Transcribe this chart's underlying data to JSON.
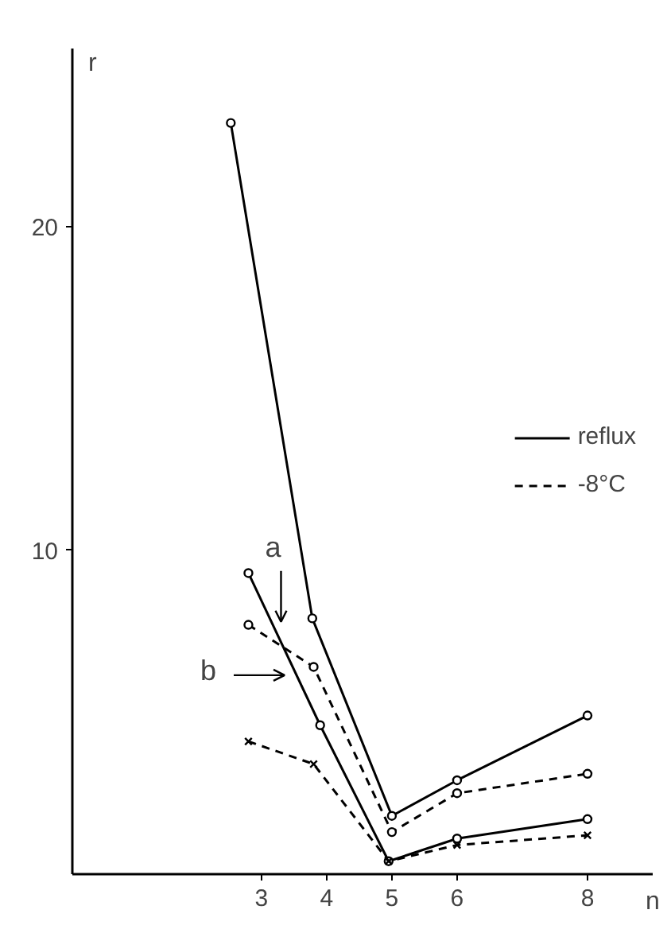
{
  "chart_data": {
    "type": "line",
    "xlabel": "n",
    "ylabel": "r",
    "xlim": [
      0.1,
      9
    ],
    "ylim": [
      0,
      25.5
    ],
    "xticks": [
      3,
      4,
      5,
      6,
      8
    ],
    "yticks": [
      10,
      20
    ],
    "grid": false,
    "legend": "right",
    "marker": "circle",
    "series": [
      {
        "name": "reflux",
        "color": "#000000",
        "line_style": "solid",
        "x": [
          2.53,
          3.78,
          5,
          6,
          8
        ],
        "values": [
          23.2,
          7.9,
          1.8,
          2.9,
          4.9
        ]
      },
      {
        "color": "#000000",
        "line_style": "solid",
        "x": [
          2.8,
          3.9,
          4.95,
          6,
          8
        ],
        "values": [
          9.3,
          4.6,
          0.4,
          1.1,
          1.7
        ]
      },
      {
        "name": "-8°C",
        "color": "#000000",
        "line_style": "dashed",
        "x": [
          2.8,
          3.8,
          5,
          6,
          8
        ],
        "values": [
          7.7,
          6.4,
          1.3,
          2.5,
          3.1
        ]
      },
      {
        "color": "#000000",
        "line_style": "dashed",
        "marker": "cross",
        "x": [
          2.8,
          3.8,
          4.95,
          6,
          8
        ],
        "values": [
          4.1,
          3.4,
          0.4,
          0.9,
          1.2
        ]
      }
    ],
    "annotations": [
      {
        "text": "a",
        "x": 3.3,
        "y": 7.4
      },
      {
        "text": "b",
        "x": 3.55,
        "y": 5.8
      }
    ]
  }
}
